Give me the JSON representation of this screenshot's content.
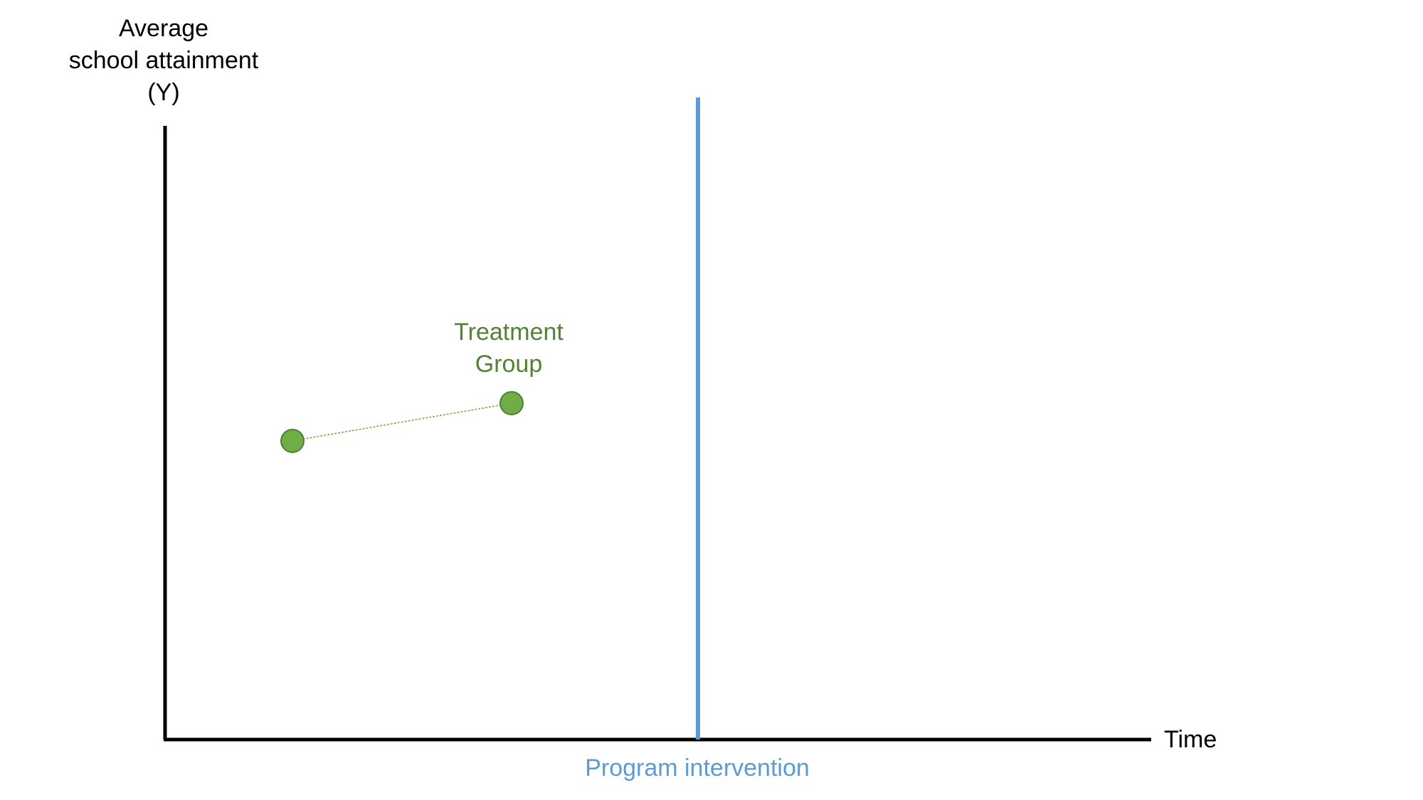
{
  "y_axis_label": [
    "Average",
    "school attainment",
    "(Y)"
  ],
  "x_axis_label": "Time",
  "intervention": {
    "label": "Program intervention",
    "color": "#5b9bd5"
  },
  "treatment_group": {
    "label": [
      "Treatment",
      "Group"
    ],
    "color": "#548235",
    "marker_fill": "#70ad47",
    "marker_stroke": "#507e32"
  },
  "axis_color": "#000000"
}
